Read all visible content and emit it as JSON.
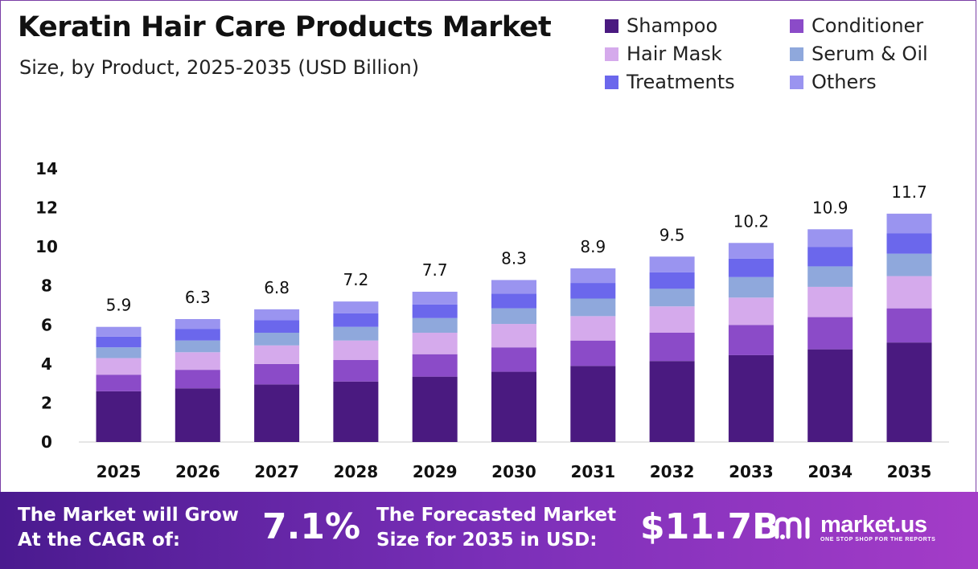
{
  "header": {
    "title": "Keratin Hair Care Products Market",
    "subtitle": "Size, by Product, 2025-2035 (USD Billion)"
  },
  "chart_data": {
    "type": "bar",
    "stacked": true,
    "categories": [
      "2025",
      "2026",
      "2027",
      "2028",
      "2029",
      "2030",
      "2031",
      "2032",
      "2033",
      "2034",
      "2035"
    ],
    "totals": [
      5.9,
      6.3,
      6.8,
      7.2,
      7.7,
      8.3,
      8.9,
      9.5,
      10.2,
      10.9,
      11.7
    ],
    "series": [
      {
        "name": "Shampoo",
        "color": "#4a1a80",
        "values": [
          2.6,
          2.75,
          2.95,
          3.1,
          3.35,
          3.6,
          3.9,
          4.15,
          4.45,
          4.75,
          5.1
        ]
      },
      {
        "name": "Conditioner",
        "color": "#8b4bc8",
        "values": [
          0.85,
          0.95,
          1.05,
          1.1,
          1.15,
          1.25,
          1.3,
          1.45,
          1.55,
          1.65,
          1.75
        ]
      },
      {
        "name": "Hair Mask",
        "color": "#d5aaec",
        "values": [
          0.85,
          0.9,
          0.95,
          1.0,
          1.1,
          1.2,
          1.25,
          1.35,
          1.4,
          1.55,
          1.65
        ]
      },
      {
        "name": "Serum & Oil",
        "color": "#8fa8dc",
        "values": [
          0.55,
          0.6,
          0.65,
          0.7,
          0.75,
          0.8,
          0.9,
          0.9,
          1.05,
          1.05,
          1.15
        ]
      },
      {
        "name": "Treatments",
        "color": "#6b67ec",
        "values": [
          0.55,
          0.6,
          0.65,
          0.7,
          0.7,
          0.75,
          0.8,
          0.85,
          0.95,
          1.0,
          1.05
        ]
      },
      {
        "name": "Others",
        "color": "#9a94f0",
        "values": [
          0.5,
          0.5,
          0.55,
          0.6,
          0.65,
          0.7,
          0.75,
          0.8,
          0.8,
          0.9,
          1.0
        ]
      }
    ],
    "ylim": [
      0,
      14
    ],
    "yticks": [
      0,
      2,
      4,
      6,
      8,
      10,
      12,
      14
    ],
    "legend_position": "top-right",
    "grid": false
  },
  "banner": {
    "cagr_label_line1": "The Market will Grow",
    "cagr_label_line2": "At the CAGR of:",
    "cagr_value": "7.1%",
    "forecast_label_line1": "The Forecasted Market",
    "forecast_label_line2": "Size for 2035 in USD:",
    "forecast_value": "$11.7B",
    "brand_name": "market.us",
    "brand_tagline": "ONE STOP SHOP FOR THE REPORTS",
    "brand_icon": "market-us-logo-icon"
  }
}
